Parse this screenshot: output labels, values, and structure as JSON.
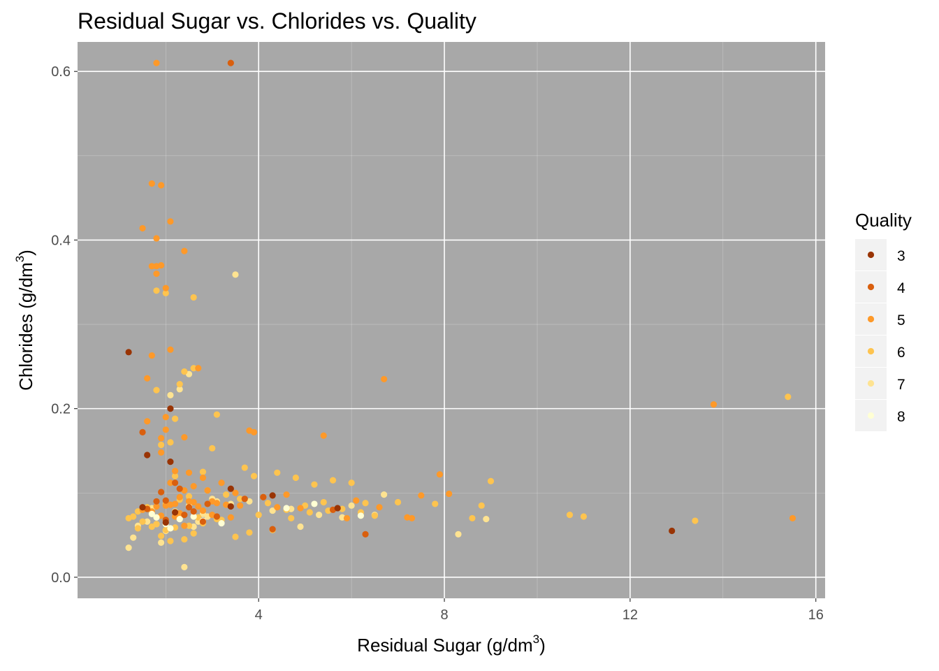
{
  "chart_data": {
    "type": "scatter",
    "title": "Residual Sugar vs. Chlorides vs. Quality",
    "xlabel": {
      "main": "Residual Sugar",
      "unit_open": "(g",
      "unit_slash": "/",
      "unit_dm": "dm",
      "unit_exp": "3",
      "unit_close": ")"
    },
    "ylabel": {
      "main": "Chlorides",
      "unit_open": "(g",
      "unit_slash": "/",
      "unit_dm": "dm",
      "unit_exp": "3",
      "unit_close": ")"
    },
    "xlim": [
      0.1,
      16.2
    ],
    "ylim": [
      -0.025,
      0.635
    ],
    "x_ticks": [
      4,
      8,
      12,
      16
    ],
    "x_tick_labels": [
      "4",
      "8",
      "12",
      "16"
    ],
    "y_ticks": [
      0.0,
      0.2,
      0.4,
      0.6
    ],
    "y_tick_labels": [
      "0.0",
      "0.2",
      "0.4",
      "0.6"
    ],
    "x_minor_ticks": [
      2,
      6,
      10,
      14
    ],
    "y_minor_ticks": [
      0.1,
      0.3,
      0.5
    ],
    "grid": true,
    "panel_background": "#a8a8a8",
    "grid_color": "#ffffff",
    "legend": {
      "title": "Quality",
      "position": "right",
      "entries": [
        {
          "label": "3",
          "color": "#993404"
        },
        {
          "label": "4",
          "color": "#d95f0e"
        },
        {
          "label": "5",
          "color": "#fe9929"
        },
        {
          "label": "6",
          "color": "#fec44f"
        },
        {
          "label": "7",
          "color": "#fee391"
        },
        {
          "label": "8",
          "color": "#ffffd4"
        }
      ]
    },
    "series": [
      {
        "name": "3",
        "x": [
          1.2,
          2.1,
          2.1,
          1.6,
          3.4,
          3.4,
          2.2,
          4.3,
          5.7,
          12.9,
          2.0,
          1.5
        ],
        "y": [
          0.267,
          0.2,
          0.137,
          0.145,
          0.105,
          0.084,
          0.077,
          0.097,
          0.082,
          0.055,
          0.065,
          0.083
        ]
      },
      {
        "name": "4",
        "x": [
          3.4,
          1.5,
          2.3,
          2.0,
          4.3,
          6.3,
          5.6,
          2.6,
          1.8,
          2.5,
          3.1,
          2.0,
          3.7,
          2.2,
          1.9,
          2.4,
          4.1,
          1.6,
          2.8,
          2.9
        ],
        "y": [
          0.61,
          0.172,
          0.105,
          0.091,
          0.057,
          0.051,
          0.08,
          0.078,
          0.09,
          0.083,
          0.072,
          0.068,
          0.093,
          0.112,
          0.101,
          0.074,
          0.095,
          0.081,
          0.066,
          0.087
        ]
      },
      {
        "name": "5",
        "x": [
          1.8,
          1.7,
          1.9,
          2.1,
          1.5,
          1.8,
          2.4,
          1.8,
          1.7,
          1.9,
          1.8,
          2.0,
          2.1,
          2.7,
          1.6,
          1.7,
          2.0,
          6.7,
          5.4,
          1.9,
          3.9,
          3.8,
          13.8,
          15.5,
          7.5,
          7.9,
          8.1,
          2.0,
          1.9,
          2.4,
          1.6,
          2.2,
          2.5,
          2.8,
          3.2,
          2.6,
          2.9,
          3.5,
          4.1,
          4.6,
          3.0,
          2.3,
          2.1,
          1.8,
          1.5,
          2.0,
          2.4,
          2.2,
          2.6,
          3.3,
          3.6,
          4.4,
          2.7,
          2.5,
          3.1,
          6.1,
          4.9,
          5.9,
          6.6,
          7.2,
          7.3,
          2.2,
          1.7,
          2.3,
          1.9,
          2.8,
          2.4,
          3.4,
          3.0,
          2.1
        ],
        "y": [
          0.61,
          0.467,
          0.465,
          0.422,
          0.414,
          0.402,
          0.387,
          0.369,
          0.369,
          0.37,
          0.36,
          0.343,
          0.27,
          0.248,
          0.236,
          0.263,
          0.19,
          0.235,
          0.168,
          0.165,
          0.172,
          0.174,
          0.205,
          0.07,
          0.097,
          0.122,
          0.099,
          0.175,
          0.148,
          0.166,
          0.185,
          0.126,
          0.124,
          0.118,
          0.112,
          0.108,
          0.103,
          0.1,
          0.095,
          0.098,
          0.09,
          0.095,
          0.112,
          0.084,
          0.08,
          0.085,
          0.103,
          0.087,
          0.089,
          0.086,
          0.085,
          0.083,
          0.084,
          0.09,
          0.088,
          0.091,
          0.082,
          0.07,
          0.083,
          0.071,
          0.07,
          0.072,
          0.078,
          0.076,
          0.073,
          0.079,
          0.061,
          0.071,
          0.074,
          0.086
        ]
      },
      {
        "name": "6",
        "x": [
          1.8,
          2.0,
          2.6,
          1.8,
          2.3,
          2.2,
          2.4,
          2.6,
          3.1,
          2.1,
          3.0,
          1.9,
          2.2,
          2.8,
          3.7,
          4.4,
          3.9,
          4.8,
          5.2,
          5.6,
          6.0,
          6.3,
          7.0,
          7.8,
          8.6,
          8.8,
          9.0,
          10.7,
          11.0,
          13.4,
          15.4,
          4.2,
          4.6,
          5.0,
          5.4,
          5.8,
          6.2,
          6.5,
          3.6,
          3.3,
          2.9,
          2.5,
          2.3,
          2.0,
          1.6,
          1.4,
          1.3,
          1.5,
          1.7,
          2.7,
          3.2,
          4.0,
          4.7,
          5.1,
          5.5,
          3.5,
          2.4,
          2.1,
          1.9,
          2.6,
          3.8,
          4.3,
          2.2,
          1.8,
          2.8,
          3.1,
          1.2,
          1.4,
          2.0,
          2.5
        ],
        "y": [
          0.34,
          0.337,
          0.332,
          0.222,
          0.229,
          0.188,
          0.244,
          0.248,
          0.193,
          0.16,
          0.153,
          0.157,
          0.12,
          0.125,
          0.13,
          0.124,
          0.12,
          0.118,
          0.11,
          0.115,
          0.112,
          0.088,
          0.089,
          0.087,
          0.07,
          0.085,
          0.114,
          0.074,
          0.072,
          0.067,
          0.214,
          0.088,
          0.08,
          0.085,
          0.089,
          0.081,
          0.077,
          0.073,
          0.093,
          0.098,
          0.103,
          0.096,
          0.092,
          0.087,
          0.083,
          0.078,
          0.072,
          0.066,
          0.06,
          0.071,
          0.068,
          0.074,
          0.07,
          0.077,
          0.079,
          0.048,
          0.045,
          0.043,
          0.049,
          0.052,
          0.053,
          0.056,
          0.059,
          0.063,
          0.064,
          0.069,
          0.07,
          0.058,
          0.056,
          0.061
        ]
      },
      {
        "name": "7",
        "x": [
          3.5,
          2.1,
          2.5,
          2.3,
          2.4,
          1.9,
          8.3,
          8.9,
          6.7,
          6.0,
          5.3,
          4.7,
          4.3,
          3.4,
          3.1,
          2.9,
          2.7,
          2.6,
          2.0,
          1.8,
          1.6,
          1.4,
          1.3,
          1.2,
          2.2,
          2.8,
          3.8,
          5.8,
          6.5,
          4.9,
          1.7,
          2.3,
          3.0,
          2.5
        ],
        "y": [
          0.359,
          0.216,
          0.241,
          0.223,
          0.012,
          0.041,
          0.051,
          0.069,
          0.098,
          0.085,
          0.074,
          0.081,
          0.079,
          0.087,
          0.09,
          0.072,
          0.066,
          0.06,
          0.055,
          0.063,
          0.066,
          0.061,
          0.047,
          0.035,
          0.078,
          0.075,
          0.09,
          0.071,
          0.074,
          0.06,
          0.082,
          0.069,
          0.093,
          0.085
        ]
      },
      {
        "name": "8",
        "x": [
          5.2,
          6.2,
          2.0,
          2.3,
          2.6,
          4.6,
          1.8,
          2.1,
          2.8,
          1.7,
          3.2
        ],
        "y": [
          0.087,
          0.073,
          0.063,
          0.069,
          0.072,
          0.082,
          0.071,
          0.058,
          0.067,
          0.075,
          0.064
        ]
      }
    ]
  }
}
